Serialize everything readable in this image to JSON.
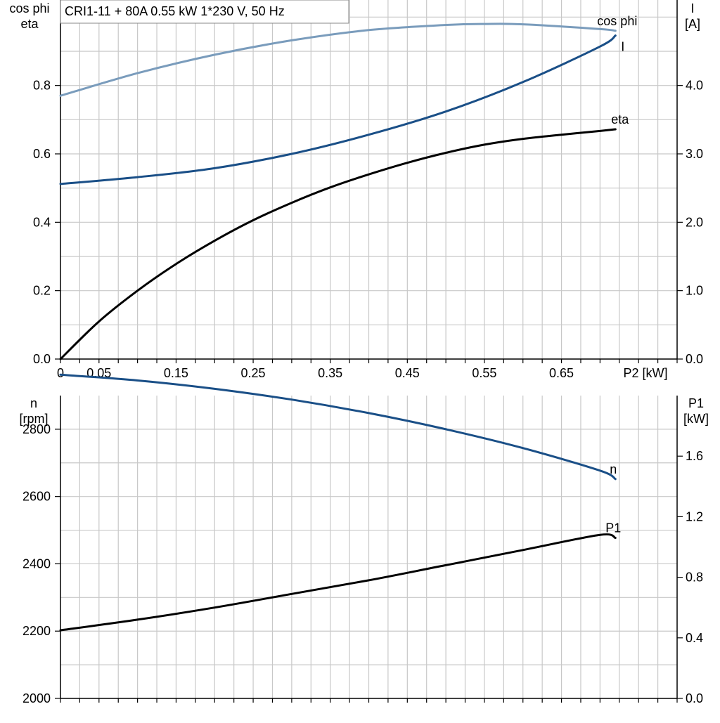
{
  "chart_data": [
    {
      "type": "line",
      "title": "CRI1-11 + 80A   0.55 kW   1*230 V, 50 Hz",
      "xlabel": "P2 [kW]",
      "ylabel": "cos phi\neta",
      "y2label": "I\n[A]",
      "xlim": [
        0,
        0.8
      ],
      "ylim": [
        0,
        1.05
      ],
      "y2lim": [
        0,
        5.25
      ],
      "xticks": [
        "0",
        "0.05",
        "0.15",
        "0.25",
        "0.35",
        "0.45",
        "0.55",
        "0.65"
      ],
      "yticks": [
        "0.0",
        "0.2",
        "0.4",
        "0.6",
        "0.8"
      ],
      "y2ticks": [
        "0.0",
        "1.0",
        "2.0",
        "3.0",
        "4.0"
      ],
      "grid": true,
      "series": [
        {
          "name": "cos phi",
          "axis": "left",
          "color": "#7a9cbc",
          "x": [
            0,
            0.1,
            0.2,
            0.3,
            0.4,
            0.5,
            0.55,
            0.6,
            0.7,
            0.72
          ],
          "y": [
            0.77,
            0.836,
            0.89,
            0.932,
            0.962,
            0.977,
            0.98,
            0.979,
            0.965,
            0.96
          ]
        },
        {
          "name": "I",
          "axis": "right",
          "color": "#1a4f87",
          "x": [
            0,
            0.1,
            0.2,
            0.3,
            0.4,
            0.5,
            0.6,
            0.7,
            0.72
          ],
          "y": [
            2.56,
            2.66,
            2.79,
            3.0,
            3.28,
            3.62,
            4.05,
            4.57,
            4.73
          ]
        },
        {
          "name": "eta",
          "axis": "left",
          "color": "#000000",
          "x": [
            0,
            0.05,
            0.1,
            0.15,
            0.2,
            0.25,
            0.3,
            0.35,
            0.4,
            0.45,
            0.5,
            0.55,
            0.6,
            0.65,
            0.7,
            0.72
          ],
          "y": [
            0,
            0.11,
            0.2,
            0.278,
            0.346,
            0.406,
            0.457,
            0.502,
            0.54,
            0.574,
            0.603,
            0.627,
            0.644,
            0.656,
            0.667,
            0.672
          ]
        }
      ]
    },
    {
      "type": "line",
      "xlabel": "",
      "ylabel": "n\n[rpm]",
      "y2label": "P1\n[kW]",
      "xlim": [
        0,
        0.8
      ],
      "ylim": [
        2000,
        2900
      ],
      "y2lim": [
        0,
        2.0
      ],
      "yticks": [
        "2000",
        "2200",
        "2400",
        "2600",
        "2800"
      ],
      "y2ticks": [
        "0.0",
        "0.4",
        "0.8",
        "1.2",
        "1.6"
      ],
      "grid": true,
      "series": [
        {
          "name": "n",
          "axis": "left",
          "color": "#1a4f87",
          "x": [
            0,
            0.1,
            0.2,
            0.3,
            0.4,
            0.5,
            0.6,
            0.7,
            0.72
          ],
          "y": [
            2962,
            2945,
            2920,
            2888,
            2848,
            2800,
            2744,
            2677,
            2652
          ]
        },
        {
          "name": "P1",
          "axis": "right",
          "color": "#000000",
          "x": [
            0,
            0.1,
            0.2,
            0.3,
            0.4,
            0.5,
            0.6,
            0.7,
            0.72
          ],
          "y": [
            0.45,
            0.52,
            0.6,
            0.69,
            0.78,
            0.88,
            0.98,
            1.08,
            1.06
          ]
        }
      ]
    }
  ]
}
